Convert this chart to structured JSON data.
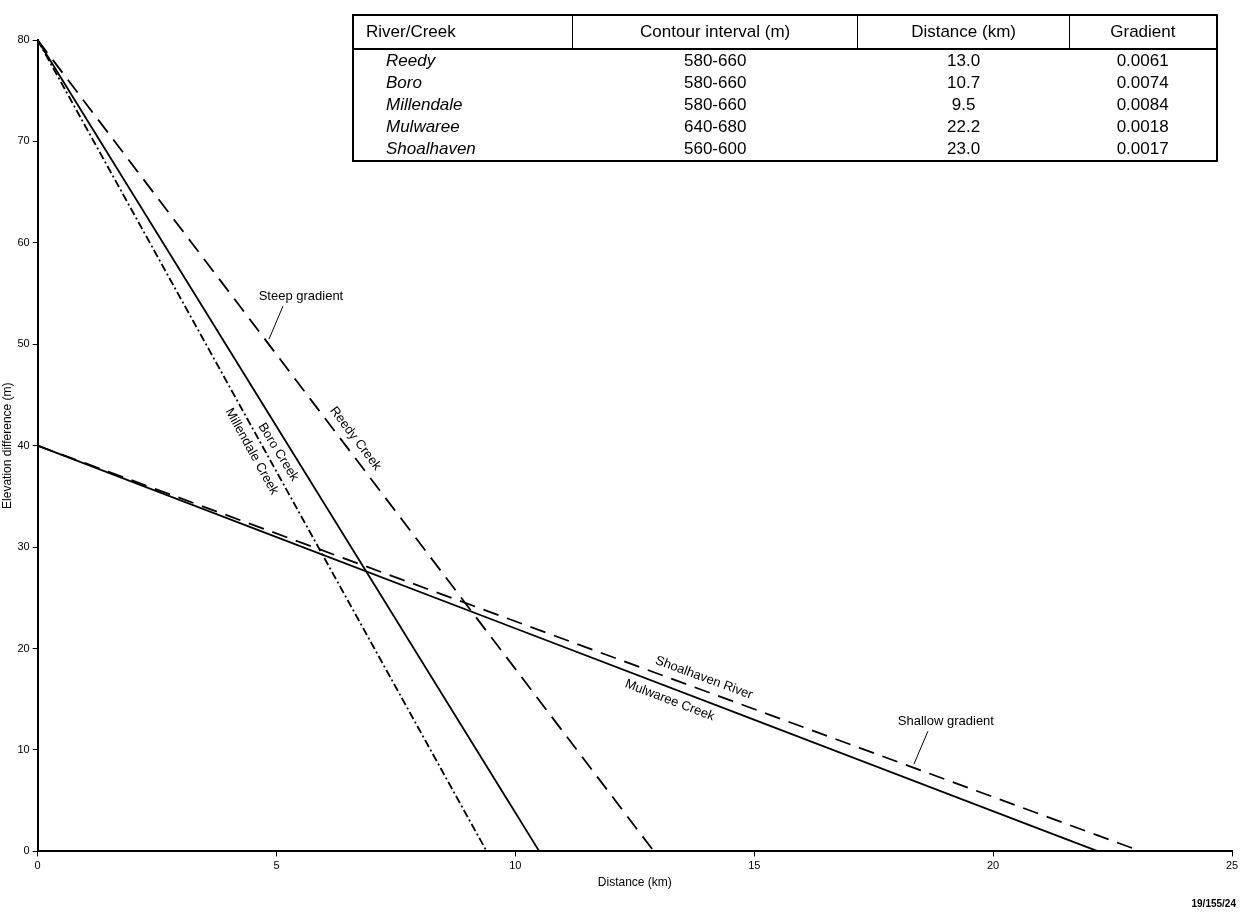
{
  "chart_data": {
    "type": "line",
    "xlabel": "Distance (km)",
    "ylabel": "Elevation difference (m)",
    "xlim": [
      0,
      25
    ],
    "xticks": [
      0,
      5,
      10,
      15,
      20,
      25
    ],
    "ylim": [
      0,
      80
    ],
    "yticks": [
      0,
      10,
      20,
      30,
      40,
      50,
      60,
      70,
      80
    ],
    "legend": false,
    "marker": "none",
    "series": [
      {
        "name": "Reedy Creek",
        "color": "#000000",
        "line_style": "dashed",
        "x": [
          0,
          12.9
        ],
        "values": [
          80,
          0
        ]
      },
      {
        "name": "Boro Creek",
        "color": "#000000",
        "line_style": "solid",
        "x": [
          0,
          10.5
        ],
        "values": [
          80,
          0
        ]
      },
      {
        "name": "Millendale Creek",
        "color": "#000000",
        "line_style": "dotted",
        "x": [
          0,
          9.4
        ],
        "values": [
          80,
          0
        ]
      },
      {
        "name": "Mulwaree Creek",
        "color": "#000000",
        "line_style": "solid",
        "x": [
          0,
          22.2
        ],
        "values": [
          40,
          0
        ]
      },
      {
        "name": "Shoalhaven River",
        "color": "#000000",
        "line_style": "dashed",
        "x": [
          0,
          23.1
        ],
        "values": [
          40,
          0
        ]
      }
    ],
    "annotations": [
      "River/Creek\tContour interval (m)\tDistance (km)\tGradient",
      "Reedy\t580-660\t13.0\t0.0061",
      "Boro\t580-660\t10.7\t0.0074",
      "Millendale\t580-660\t9.5\t0.0084",
      "Mulwaree\t640-680\t22.2\t0.0018",
      "Shoalhaven\t560-600\t23.0\t0.0017",
      {
        "text": "Steep gradient",
        "x": 4.8,
        "y": 50.2
      },
      {
        "text": "Shallow gradient",
        "x": 18.3,
        "y": 8.3
      },
      "19/155/24"
    ]
  }
}
